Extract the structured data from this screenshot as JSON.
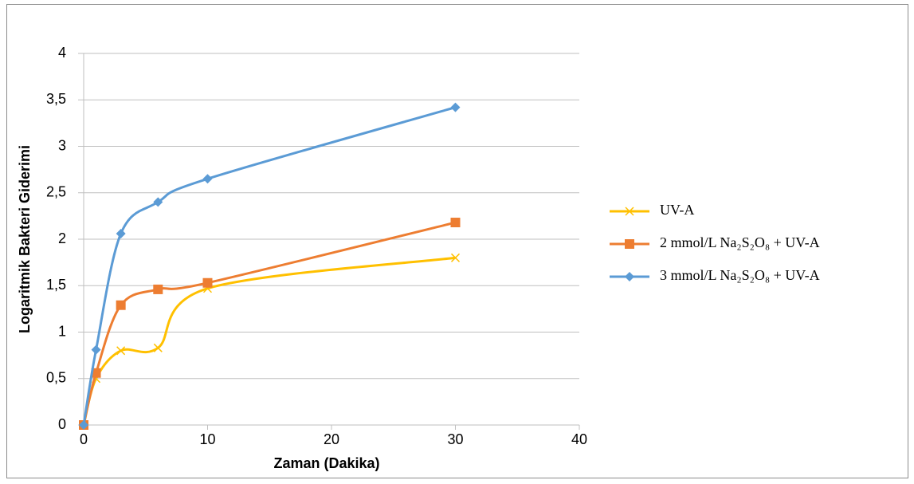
{
  "chart_data": {
    "type": "line",
    "xlabel": "Zaman (Dakika)",
    "ylabel": "Logaritmik Bakteri Giderimi",
    "x": [
      0,
      1,
      3,
      6,
      10,
      30
    ],
    "series": [
      {
        "name": "UV-A",
        "color": "#ffc000",
        "marker": "x",
        "values": [
          0,
          0.5,
          0.8,
          0.83,
          1.47,
          1.8
        ]
      },
      {
        "name": "2 mmol/L Na₂S₂O₈ + UV-A",
        "color": "#ed7d31",
        "marker": "square",
        "values": [
          0,
          0.56,
          1.29,
          1.46,
          1.53,
          2.18
        ]
      },
      {
        "name": "3 mmol/L Na₂S₂O₈ + UV-A",
        "color": "#5b9bd5",
        "marker": "diamond",
        "values": [
          0,
          0.81,
          2.06,
          2.4,
          2.65,
          3.42
        ]
      }
    ],
    "smooth": true,
    "xlim": [
      0,
      40
    ],
    "xticks": [
      0,
      10,
      20,
      30,
      40
    ],
    "ylim": [
      0,
      4
    ],
    "yticks": [
      0,
      {
        "value": 0.5,
        "label": "0,5"
      },
      1,
      {
        "value": 1.5,
        "label": "1,5"
      },
      2,
      {
        "value": 2.5,
        "label": "2,5"
      },
      3,
      {
        "value": 3.5,
        "label": "3,5"
      },
      4
    ],
    "grid": true,
    "legend": "right"
  }
}
